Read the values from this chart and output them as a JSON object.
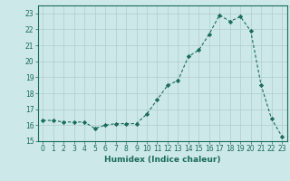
{
  "x": [
    0,
    1,
    2,
    3,
    4,
    5,
    6,
    7,
    8,
    9,
    10,
    11,
    12,
    13,
    14,
    15,
    16,
    17,
    18,
    19,
    20,
    21,
    22,
    23
  ],
  "y": [
    16.3,
    16.3,
    16.2,
    16.2,
    16.2,
    15.8,
    16.0,
    16.1,
    16.1,
    16.1,
    16.7,
    17.6,
    18.5,
    18.8,
    20.3,
    20.7,
    21.7,
    22.9,
    22.5,
    22.8,
    21.9,
    18.5,
    16.4,
    15.3
  ],
  "line_color": "#1a6b5a",
  "marker": "D",
  "marker_size": 2.2,
  "bg_color": "#cce8e8",
  "grid_color": "#b0cccc",
  "xlabel": "Humidex (Indice chaleur)",
  "ylim": [
    15,
    23.5
  ],
  "yticks": [
    15,
    16,
    17,
    18,
    19,
    20,
    21,
    22,
    23
  ],
  "xticks": [
    0,
    1,
    2,
    3,
    4,
    5,
    6,
    7,
    8,
    9,
    10,
    11,
    12,
    13,
    14,
    15,
    16,
    17,
    18,
    19,
    20,
    21,
    22,
    23
  ],
  "tick_fontsize": 5.5,
  "xlabel_fontsize": 6.5
}
